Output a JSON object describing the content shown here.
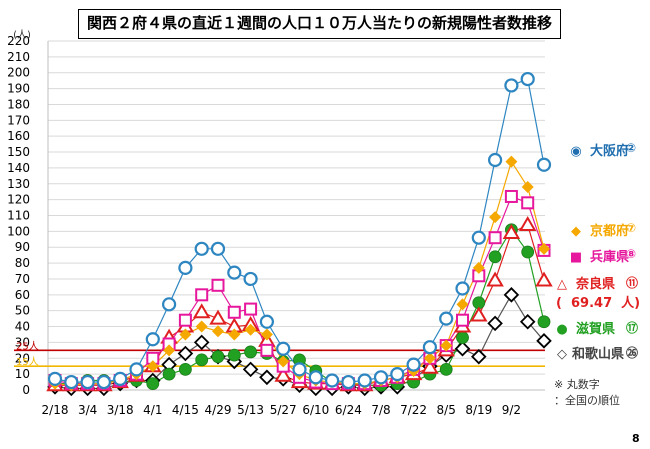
{
  "chart_data": {
    "type": "line",
    "title": "関西２府４県の直近１週間の人口１０万人当たりの新規陽性者数推移",
    "yunit": "(人)",
    "ylim": [
      0,
      220
    ],
    "ytick_step": 10,
    "x_tick_labels": [
      "2/18",
      "3/4",
      "3/18",
      "4/1",
      "4/15",
      "4/29",
      "5/13",
      "5/27",
      "6/10",
      "6/24",
      "7/8",
      "7/22",
      "8/5",
      "8/19",
      "9/2"
    ],
    "reference_lines": [
      {
        "label": "25人",
        "value": 25,
        "color": "#c00000"
      },
      {
        "label": "15人",
        "value": 15,
        "color": "#f2b800"
      }
    ],
    "series": [
      {
        "name": "大阪府",
        "color": "#2e86c1",
        "marker": "circle",
        "rank": "②",
        "values": [
          7,
          5,
          5,
          5,
          7,
          13,
          32,
          54,
          77,
          89,
          89,
          74,
          70,
          43,
          26,
          13,
          8,
          6,
          5,
          6,
          8,
          10,
          16,
          27,
          45,
          64,
          96,
          145,
          192,
          196,
          142
        ]
      },
      {
        "name": "京都府",
        "color": "#f5a800",
        "marker": "diamond",
        "rank": "⑦",
        "values": [
          4,
          3,
          4,
          4,
          6,
          10,
          15,
          25,
          35,
          40,
          37,
          35,
          38,
          35,
          18,
          10,
          6,
          5,
          4,
          4,
          6,
          8,
          12,
          20,
          28,
          54,
          77,
          109,
          144,
          128,
          89
        ]
      },
      {
        "name": "兵庫県",
        "color": "#e6179c",
        "marker": "square",
        "rank": "⑧",
        "values": [
          6,
          4,
          4,
          4,
          6,
          10,
          20,
          29,
          44,
          60,
          66,
          49,
          51,
          25,
          15,
          8,
          5,
          4,
          4,
          4,
          6,
          8,
          13,
          20,
          28,
          44,
          72,
          96,
          122,
          118,
          88
        ]
      },
      {
        "name": "奈良県",
        "value_label": "69.47",
        "color": "#e02020",
        "marker": "triangle",
        "rank": "⑪",
        "values": [
          3,
          3,
          3,
          3,
          5,
          9,
          15,
          33,
          40,
          49,
          45,
          40,
          41,
          31,
          9,
          5,
          4,
          4,
          3,
          3,
          6,
          8,
          10,
          14,
          25,
          40,
          47,
          69,
          99,
          104,
          69
        ]
      },
      {
        "name": "滋賀県",
        "color": "#22a022",
        "marker": "dot",
        "rank": "⑰",
        "values": [
          4,
          4,
          6,
          6,
          5,
          6,
          4,
          10,
          13,
          19,
          21,
          22,
          24,
          23,
          18,
          19,
          12,
          5,
          4,
          3,
          3,
          4,
          5,
          10,
          13,
          33,
          55,
          84,
          101,
          87,
          43
        ]
      },
      {
        "name": "和歌山県",
        "color": "#000000",
        "marker": "hollow-diamond",
        "rank": "㉖",
        "values": [
          2,
          1,
          1,
          1,
          4,
          6,
          6,
          16,
          23,
          30,
          21,
          18,
          13,
          8,
          7,
          3,
          1,
          1,
          2,
          1,
          2,
          2,
          7,
          15,
          22,
          26,
          21,
          42,
          60,
          43,
          31
        ]
      }
    ]
  },
  "footnote": {
    "line1": "※ 丸数字",
    "line2": "：全国の順位"
  },
  "page_number": "8"
}
